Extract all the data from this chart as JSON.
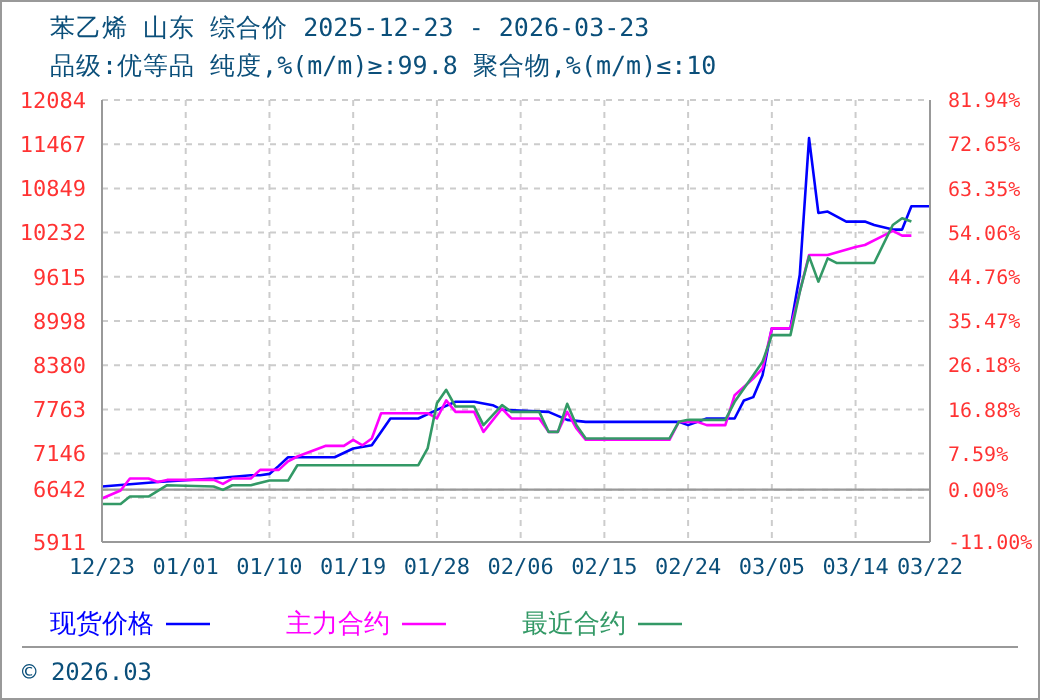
{
  "chart_data": {
    "type": "line",
    "title": "苯乙烯 山东 综合价 2025-12-23 - 2026-03-23",
    "subtitle": "品级:优等品 纯度,%(m/m)≥:99.8 聚合物,%(m/m)≤:10",
    "annotations": [
      "© 2026.03"
    ],
    "series": [
      {
        "name": "现货价格",
        "color": "#0000ff",
        "x": [
          "2025-12-23",
          "2025-12-29",
          "2026-01-04",
          "2026-01-08",
          "2026-01-09",
          "2026-01-10",
          "2026-01-11",
          "2026-01-12",
          "2026-01-17",
          "2026-01-19",
          "2026-01-21",
          "2026-01-23",
          "2026-01-26",
          "2026-01-28",
          "2026-01-30",
          "2026-02-01",
          "2026-02-03",
          "2026-02-04",
          "2026-02-09",
          "2026-02-11",
          "2026-02-13",
          "2026-02-23",
          "2026-02-24",
          "2026-02-26",
          "2026-03-01",
          "2026-03-02",
          "2026-03-03",
          "2026-03-04",
          "2026-03-05",
          "2026-03-07",
          "2026-03-08",
          "2026-03-09",
          "2026-03-10",
          "2026-03-11",
          "2026-03-13",
          "2026-03-15",
          "2026-03-16",
          "2026-03-18",
          "2026-03-19",
          "2026-03-20",
          "2026-03-22"
        ],
        "values": [
          6686,
          6750,
          6797,
          6843,
          6843,
          6862,
          6974,
          7094,
          7094,
          7217,
          7262,
          7636,
          7636,
          7757,
          7869,
          7869,
          7822,
          7757,
          7729,
          7617,
          7589,
          7589,
          7543,
          7636,
          7636,
          7888,
          7934,
          8241,
          8895,
          8895,
          9639,
          11552,
          10507,
          10526,
          10386,
          10386,
          10339,
          10274,
          10274,
          10601,
          10601
        ]
      },
      {
        "name": "主力合约",
        "color": "#ff00ff",
        "x": [
          "2025-12-23",
          "2025-12-25",
          "2025-12-26",
          "2025-12-28",
          "2025-12-29",
          "2025-12-30",
          "2026-01-04",
          "2026-01-05",
          "2026-01-06",
          "2026-01-08",
          "2026-01-09",
          "2026-01-11",
          "2026-01-12",
          "2026-01-13",
          "2026-01-16",
          "2026-01-18",
          "2026-01-19",
          "2026-01-20",
          "2026-01-21",
          "2026-01-22",
          "2026-01-27",
          "2026-01-28",
          "2026-01-29",
          "2026-01-30",
          "2026-02-01",
          "2026-02-02",
          "2026-02-04",
          "2026-02-05",
          "2026-02-08",
          "2026-02-09",
          "2026-02-10",
          "2026-02-11",
          "2026-02-12",
          "2026-02-13",
          "2026-02-22",
          "2026-02-23",
          "2026-02-25",
          "2026-02-26",
          "2026-02-28",
          "2026-03-01",
          "2026-03-03",
          "2026-03-04",
          "2026-03-05",
          "2026-03-07",
          "2026-03-09",
          "2026-03-11",
          "2026-03-14",
          "2026-03-15",
          "2026-03-17",
          "2026-03-18",
          "2026-03-19",
          "2026-03-20"
        ],
        "values": [
          6518,
          6630,
          6797,
          6797,
          6750,
          6778,
          6778,
          6722,
          6797,
          6797,
          6918,
          6918,
          7038,
          7105,
          7253,
          7253,
          7338,
          7262,
          7357,
          7710,
          7710,
          7636,
          7888,
          7729,
          7729,
          7449,
          7775,
          7636,
          7636,
          7449,
          7449,
          7729,
          7496,
          7338,
          7338,
          7589,
          7589,
          7543,
          7543,
          7961,
          8194,
          8334,
          8895,
          8895,
          9919,
          9919,
          10031,
          10059,
          10190,
          10255,
          10190,
          10190
        ]
      },
      {
        "name": "最近合约",
        "color": "#339966",
        "x": [
          "2025-12-23",
          "2025-12-25",
          "2025-12-26",
          "2025-12-28",
          "2025-12-30",
          "2026-01-04",
          "2026-01-05",
          "2026-01-06",
          "2026-01-08",
          "2026-01-10",
          "2026-01-12",
          "2026-01-13",
          "2026-01-14",
          "2026-01-26",
          "2026-01-27",
          "2026-01-28",
          "2026-01-29",
          "2026-01-30",
          "2026-02-01",
          "2026-02-02",
          "2026-02-04",
          "2026-02-05",
          "2026-02-08",
          "2026-02-09",
          "2026-02-10",
          "2026-02-11",
          "2026-02-12",
          "2026-02-13",
          "2026-02-22",
          "2026-02-23",
          "2026-02-24",
          "2026-02-28",
          "2026-03-01",
          "2026-03-03",
          "2026-03-04",
          "2026-03-05",
          "2026-03-07",
          "2026-03-08",
          "2026-03-09",
          "2026-03-10",
          "2026-03-11",
          "2026-03-12",
          "2026-03-16",
          "2026-03-18",
          "2026-03-19",
          "2026-03-20"
        ],
        "values": [
          6442,
          6442,
          6546,
          6546,
          6704,
          6686,
          6639,
          6704,
          6704,
          6769,
          6769,
          6983,
          6983,
          6983,
          7217,
          7850,
          8037,
          7803,
          7803,
          7543,
          7822,
          7729,
          7729,
          7449,
          7449,
          7841,
          7543,
          7357,
          7357,
          7589,
          7617,
          7617,
          7869,
          8241,
          8428,
          8800,
          8800,
          9400,
          9900,
          9547,
          9872,
          9807,
          9807,
          10339,
          10432,
          10386
        ]
      }
    ],
    "xlim": [
      "2025-12-23",
      "2026-03-22"
    ],
    "xticks": [
      {
        "value": "2025-12-23",
        "label": "12/23"
      },
      {
        "value": "2026-01-01",
        "label": "01/01"
      },
      {
        "value": "2026-01-10",
        "label": "01/10"
      },
      {
        "value": "2026-01-19",
        "label": "01/19"
      },
      {
        "value": "2026-01-28",
        "label": "01/28"
      },
      {
        "value": "2026-02-06",
        "label": "02/06"
      },
      {
        "value": "2026-02-15",
        "label": "02/15"
      },
      {
        "value": "2026-02-24",
        "label": "02/24"
      },
      {
        "value": "2026-03-05",
        "label": "03/05"
      },
      {
        "value": "2026-03-14",
        "label": "03/14"
      },
      {
        "value": "2026-03-22",
        "label": "03/22"
      }
    ],
    "ylim": [
      5911,
      12084
    ],
    "yticks": [
      5911,
      {
        "value": 6528,
        "label": null
      },
      6642,
      7146,
      7763,
      8380,
      8998,
      9615,
      10232,
      10849,
      11467,
      12084
    ],
    "y2lim": [
      -11,
      81.94
    ],
    "y2ticks": [
      {
        "value": -11,
        "label": "-11.00%"
      },
      {
        "value": 0,
        "label": "0.00%"
      },
      {
        "value": 7.59,
        "label": "7.59%"
      },
      {
        "value": 16.88,
        "label": "16.88%"
      },
      {
        "value": 26.18,
        "label": "26.18%"
      },
      {
        "value": 35.47,
        "label": "35.47%"
      },
      {
        "value": 44.76,
        "label": "44.76%"
      },
      {
        "value": 54.06,
        "label": "54.06%"
      },
      {
        "value": 63.35,
        "label": "63.35%"
      },
      {
        "value": 72.65,
        "label": "72.65%"
      },
      {
        "value": 81.94,
        "label": "81.94%"
      }
    ],
    "ref_lines": [
      {
        "axis": "y",
        "value": 6642,
        "color": "#999999"
      }
    ],
    "grid": true,
    "legend": "bottom",
    "marker": "none",
    "line_style": "solid"
  }
}
